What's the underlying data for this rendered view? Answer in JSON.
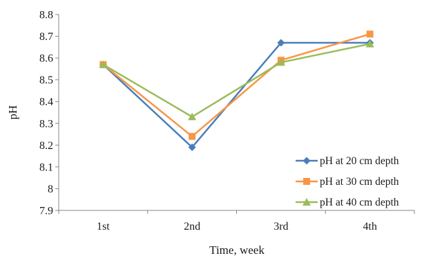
{
  "chart_data": {
    "type": "line",
    "title": "",
    "xlabel": "Time, week",
    "ylabel": "pH",
    "categories": [
      "1st",
      "2nd",
      "3rd",
      "4th"
    ],
    "ylim": [
      7.9,
      8.8
    ],
    "yticks": [
      "7.9",
      "8",
      "8.1",
      "8.2",
      "8.3",
      "8.4",
      "8.5",
      "8.6",
      "8.7",
      "8.8"
    ],
    "grid": false,
    "legend_position": "right",
    "series": [
      {
        "name": "pH at 20 cm depth",
        "values": [
          8.57,
          8.19,
          8.67,
          8.67
        ],
        "color": "#4a7ebb",
        "marker": "diamond"
      },
      {
        "name": "pH at 30 cm depth",
        "values": [
          8.57,
          8.24,
          8.59,
          8.71
        ],
        "color": "#f79646",
        "marker": "square"
      },
      {
        "name": "pH at 40 cm depth",
        "values": [
          8.57,
          8.33,
          8.58,
          8.665
        ],
        "color": "#9bbb59",
        "marker": "triangle"
      }
    ]
  }
}
